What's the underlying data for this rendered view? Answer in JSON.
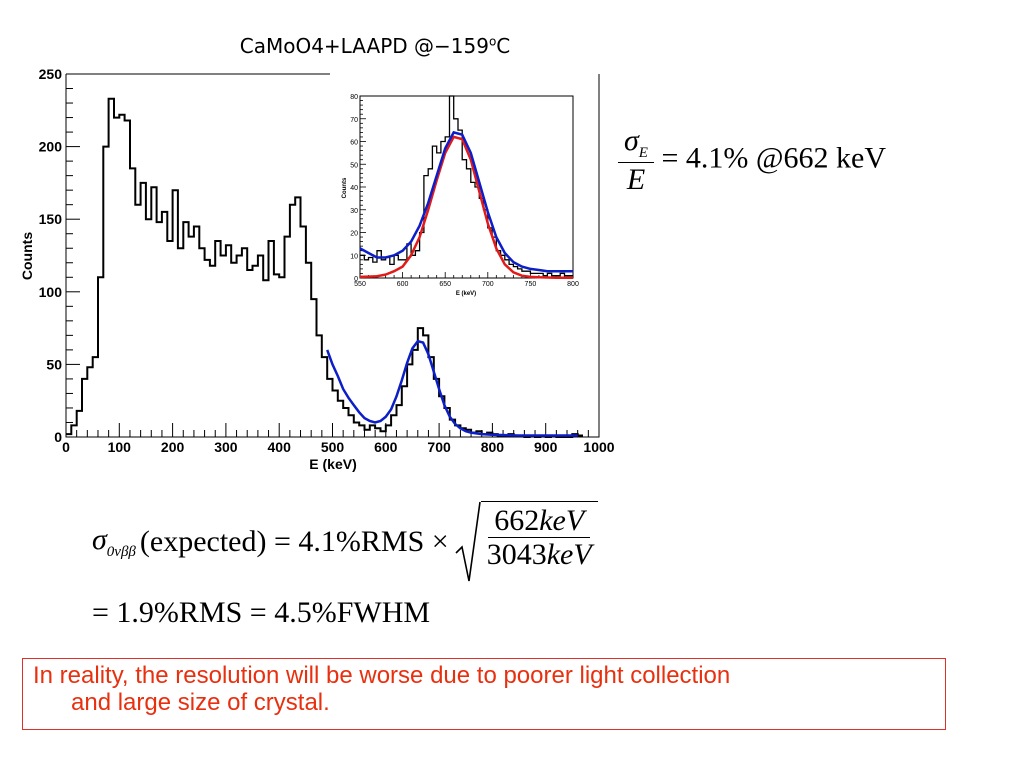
{
  "chart_data": [
    {
      "type": "line",
      "title": "CaMoO4+LAAPD @−159",
      "title_superscript": "o",
      "title_suffix": "C",
      "xlabel": "E (keV)",
      "ylabel": "Counts",
      "xlim": [
        0,
        1000
      ],
      "ylim": [
        0,
        250
      ],
      "xticks": [
        "0",
        "100",
        "200",
        "300",
        "400",
        "500",
        "600",
        "700",
        "800",
        "900",
        "1000"
      ],
      "yticks": [
        "0",
        "50",
        "100",
        "150",
        "200",
        "250"
      ],
      "grid": false,
      "series": [
        {
          "role": "histogram",
          "color": "#000000",
          "bin_width": 10,
          "x": [
            0,
            10,
            20,
            30,
            40,
            50,
            60,
            70,
            80,
            90,
            100,
            110,
            120,
            130,
            140,
            150,
            160,
            170,
            180,
            190,
            200,
            210,
            220,
            230,
            240,
            250,
            260,
            270,
            280,
            290,
            300,
            310,
            320,
            330,
            340,
            350,
            360,
            370,
            380,
            390,
            400,
            410,
            420,
            430,
            440,
            450,
            460,
            470,
            480,
            490,
            500,
            510,
            520,
            530,
            540,
            550,
            560,
            570,
            580,
            590,
            600,
            610,
            620,
            630,
            640,
            650,
            660,
            670,
            680,
            690,
            700,
            710,
            720,
            730,
            740,
            750,
            760,
            770,
            780,
            790,
            800,
            810,
            820,
            830,
            840,
            850,
            860,
            870,
            880,
            890,
            900,
            910,
            920,
            930,
            940,
            950,
            960
          ],
          "values": [
            2,
            8,
            18,
            40,
            48,
            55,
            110,
            200,
            233,
            220,
            222,
            218,
            185,
            160,
            175,
            150,
            172,
            148,
            155,
            135,
            170,
            130,
            148,
            138,
            145,
            130,
            122,
            118,
            135,
            125,
            132,
            120,
            125,
            130,
            115,
            118,
            125,
            108,
            135,
            112,
            110,
            138,
            160,
            165,
            145,
            120,
            95,
            70,
            55,
            40,
            32,
            25,
            20,
            15,
            10,
            8,
            5,
            8,
            6,
            4,
            8,
            15,
            22,
            35,
            50,
            60,
            75,
            70,
            55,
            40,
            28,
            20,
            12,
            8,
            6,
            5,
            3,
            4,
            2,
            3,
            2,
            1,
            1,
            2,
            1,
            1,
            0,
            1,
            0,
            1,
            0,
            1,
            0,
            0,
            0,
            2,
            1
          ]
        },
        {
          "role": "fit",
          "color": "#0b1ec8",
          "x": [
            490,
            500,
            510,
            520,
            530,
            540,
            550,
            560,
            570,
            580,
            590,
            600,
            610,
            620,
            630,
            640,
            650,
            660,
            670,
            680,
            690,
            700,
            710,
            720,
            730,
            740,
            750,
            760,
            780,
            800,
            850,
            900,
            960
          ],
          "values": [
            60,
            50,
            42,
            33,
            27,
            22,
            17,
            13,
            11,
            10,
            11,
            14,
            19,
            28,
            39,
            51,
            61,
            66,
            65,
            57,
            45,
            33,
            22,
            14,
            9,
            6,
            4,
            3,
            2,
            1.5,
            1,
            1,
            1
          ]
        }
      ]
    },
    {
      "type": "line",
      "xlabel": "E (keV)",
      "ylabel": "Counts",
      "xlim": [
        550,
        800
      ],
      "ylim": [
        0,
        80
      ],
      "xticks": [
        "550",
        "600",
        "650",
        "700",
        "750",
        "800"
      ],
      "yticks": [
        "0",
        "10",
        "20",
        "30",
        "40",
        "50",
        "60",
        "70",
        "80"
      ],
      "series": [
        {
          "role": "histogram",
          "color": "#000000",
          "bin_width": 5,
          "x": [
            550,
            555,
            560,
            565,
            570,
            575,
            580,
            585,
            590,
            595,
            600,
            605,
            610,
            615,
            620,
            625,
            630,
            635,
            640,
            645,
            650,
            655,
            660,
            665,
            670,
            675,
            680,
            685,
            690,
            695,
            700,
            705,
            710,
            715,
            720,
            725,
            730,
            735,
            740,
            745,
            750,
            755,
            760,
            765,
            770,
            775,
            780,
            785,
            790,
            795
          ],
          "values": [
            10,
            8,
            9,
            7,
            12,
            8,
            9,
            6,
            10,
            8,
            8,
            15,
            10,
            12,
            20,
            45,
            48,
            58,
            55,
            60,
            62,
            80,
            70,
            65,
            52,
            48,
            42,
            40,
            35,
            30,
            22,
            18,
            12,
            10,
            8,
            6,
            5,
            4,
            3,
            3,
            2,
            2,
            2,
            1,
            2,
            1,
            1,
            2,
            1,
            1
          ]
        },
        {
          "role": "fit",
          "color": "#0b1ec8",
          "x": [
            550,
            560,
            570,
            580,
            590,
            600,
            610,
            620,
            630,
            640,
            650,
            660,
            670,
            680,
            690,
            700,
            710,
            720,
            730,
            740,
            750,
            760,
            770,
            780,
            790,
            800
          ],
          "values": [
            13,
            11,
            9,
            9,
            10,
            12,
            16,
            23,
            33,
            45,
            57,
            64,
            63,
            55,
            42,
            29,
            18,
            11,
            7,
            5,
            4,
            3.5,
            3,
            3,
            3,
            3
          ]
        },
        {
          "role": "gaussian",
          "color": "#e21a1a",
          "x": [
            550,
            560,
            570,
            580,
            590,
            600,
            610,
            620,
            630,
            640,
            650,
            660,
            670,
            680,
            690,
            700,
            710,
            720,
            730,
            740,
            750,
            760,
            770,
            780,
            790,
            800
          ],
          "values": [
            0.5,
            0.6,
            0.8,
            1.5,
            3,
            5,
            10,
            18,
            30,
            43,
            55,
            62,
            61,
            52,
            38,
            24,
            13,
            6,
            2.5,
            1,
            0.5,
            0.3,
            0.2,
            0.1,
            0.1,
            0.1
          ]
        }
      ]
    }
  ],
  "resolution": {
    "sigma": "σ",
    "sigma_sub": "E",
    "denominator": "E",
    "value": "= 4.1% @662 keV"
  },
  "expected": {
    "sigma": "σ",
    "sigma_sub": "0νββ",
    "prefix": "(expected) = 4.1%RMS ×",
    "num_value": "662",
    "num_unit": "keV",
    "den_value": "3043",
    "den_unit": "keV"
  },
  "result": "= 1.9%RMS = 4.5%FWHM",
  "note": {
    "line1": "In reality, the resolution will be worse due to poorer light collection",
    "line2": "and large size of crystal."
  }
}
